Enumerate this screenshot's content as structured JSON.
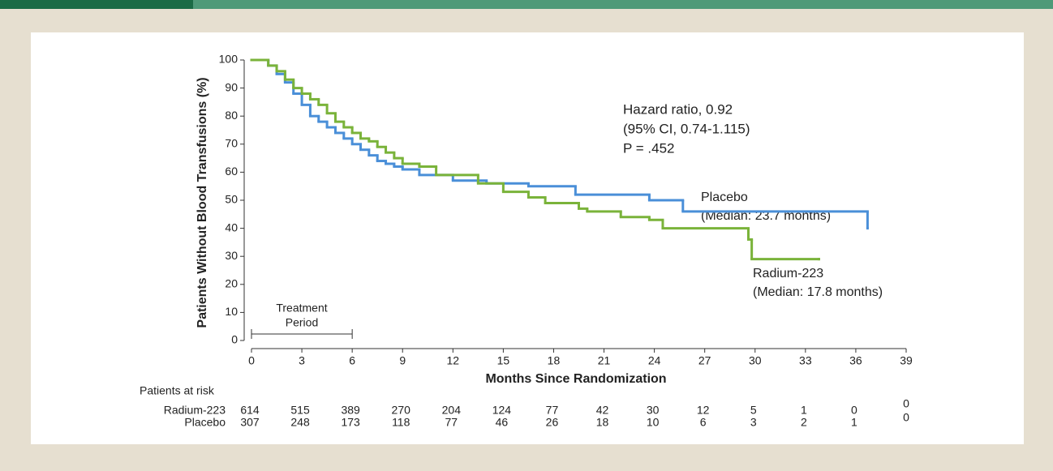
{
  "chart_data": {
    "type": "step",
    "ylabel": "Patients Without Blood Transfusions (%)",
    "xlabel": "Months Since Randomization",
    "xlim": [
      0,
      39
    ],
    "xticks": [
      0,
      3,
      6,
      9,
      12,
      15,
      18,
      21,
      24,
      27,
      30,
      33,
      36,
      39
    ],
    "ylim": [
      0,
      100
    ],
    "yticks": [
      0,
      10,
      20,
      30,
      40,
      50,
      60,
      70,
      80,
      90,
      100
    ],
    "annotations": [
      "Hazard ratio, 0.92",
      "(95% CI, 0.74-1.115)",
      "P = .452"
    ],
    "treatment_label": [
      "Treatment",
      "Period"
    ],
    "treatment_period": [
      0,
      6
    ],
    "series": [
      {
        "name": "Placebo",
        "median_label": "(Median: 23.7 months)",
        "color": "#4a8fd8",
        "x": [
          0,
          1,
          1.5,
          2,
          2.5,
          3,
          3.5,
          4,
          4.5,
          5,
          5.5,
          6,
          6.5,
          7,
          7.5,
          8,
          8.5,
          9,
          10,
          12,
          14,
          16.5,
          19.3,
          23.7,
          25.7,
          36.7
        ],
        "values": [
          100,
          98,
          95,
          92,
          88,
          84,
          80,
          78,
          76,
          74,
          72,
          70,
          68,
          66,
          64,
          63,
          62,
          61,
          59,
          57,
          56,
          55,
          52,
          50,
          46,
          40
        ]
      },
      {
        "name": "Radium-223",
        "median_label": "(Median: 17.8 months)",
        "color": "#7ab33a",
        "x": [
          0,
          1,
          1.5,
          2,
          2.5,
          3,
          3.5,
          4,
          4.5,
          5,
          5.5,
          6,
          6.5,
          7,
          7.5,
          8,
          8.5,
          9,
          10,
          11,
          13.5,
          15,
          16.5,
          17.5,
          19.5,
          20,
          22,
          23.7,
          24.5,
          29.6,
          29.8,
          33.8
        ],
        "values": [
          100,
          98,
          96,
          93,
          90,
          88,
          86,
          84,
          81,
          78,
          76,
          74,
          72,
          71,
          69,
          67,
          65,
          63,
          62,
          59,
          56,
          53,
          51,
          49,
          47,
          46,
          44,
          43,
          40,
          36,
          29,
          29
        ]
      }
    ],
    "risk_table": {
      "title": "Patients at risk",
      "times": [
        0,
        3,
        6,
        9,
        12,
        15,
        18,
        21,
        24,
        27,
        30,
        33,
        36,
        39
      ],
      "rows": [
        {
          "name": "Radium-223",
          "values": [
            614,
            515,
            389,
            270,
            204,
            124,
            77,
            42,
            30,
            12,
            5,
            1,
            0,
            0
          ]
        },
        {
          "name": "Placebo",
          "values": [
            307,
            248,
            173,
            118,
            77,
            46,
            26,
            18,
            10,
            6,
            3,
            2,
            1,
            0
          ]
        }
      ]
    }
  }
}
